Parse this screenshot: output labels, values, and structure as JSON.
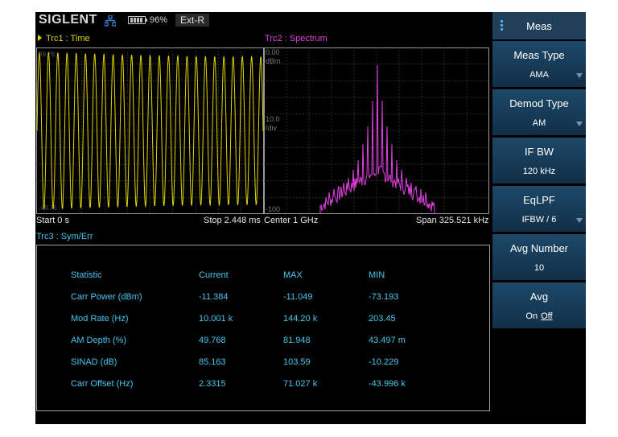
{
  "status_bar": {
    "brand": "SIGLENT",
    "network_icon": "network-icon",
    "battery_icon": "battery-icon",
    "battery_percent": "96%",
    "ref_source": "Ext-R"
  },
  "trace1": {
    "title": "Trc1 : Time",
    "color": "#e3d600",
    "start": "Start 0 s",
    "stop": "Stop 2.448 ms"
  },
  "trace2": {
    "title": "Trc2 : Spectrum",
    "color": "#e040e0",
    "ref_level": "0.00",
    "ref_unit": "dBm",
    "scale": "10.0",
    "scale_unit": "/div",
    "bottom_level": "-100",
    "center": "Center 1 GHz",
    "span": "Span 325.521 kHz"
  },
  "trace3": {
    "title": "Trc3 : Sym/Err",
    "color": "#46c6ef",
    "headers": [
      "Statistic",
      "Current",
      "MAX",
      "MIN"
    ],
    "rows": [
      [
        "Carr Power (dBm)",
        "-11.384",
        "-11.049",
        "-73.193"
      ],
      [
        "Mod Rate (Hz)",
        "10.001 k",
        "144.20 k",
        "203.45"
      ],
      [
        "AM Depth (%)",
        "49.768",
        "81.948",
        "43.497 m"
      ],
      [
        "SINAD (dB)",
        "85.163",
        "103.59",
        "-10.229"
      ],
      [
        "Carr Offset (Hz)",
        "2.3315",
        "71.027 k",
        "-43.996 k"
      ]
    ]
  },
  "menu": {
    "title": "Meas",
    "items": [
      {
        "label": "Meas Type",
        "value": "AMA"
      },
      {
        "label": "Demod Type",
        "value": "AM"
      },
      {
        "label": "IF BW",
        "value": "120 kHz"
      },
      {
        "label": "EqLPF",
        "value": "IFBW / 6"
      },
      {
        "label": "Avg Number",
        "value": "10"
      },
      {
        "label": "Avg",
        "on": "On",
        "off": "Off"
      }
    ]
  }
}
